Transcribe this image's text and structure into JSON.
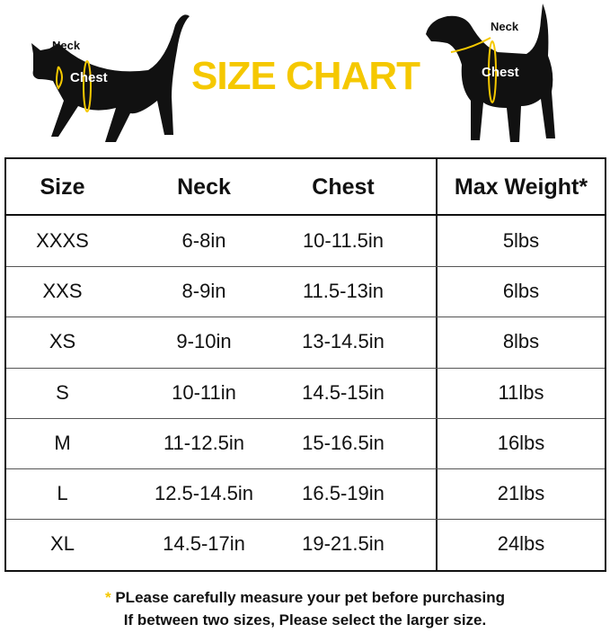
{
  "header": {
    "title": "SIZE CHART",
    "cat_labels": {
      "neck": "Neck",
      "chest": "Chest"
    },
    "dog_labels": {
      "neck": "Neck",
      "chest": "Chest"
    }
  },
  "colors": {
    "accent": "#f5c800",
    "text": "#111111"
  },
  "table": {
    "columns": [
      "Size",
      "Neck",
      "Chest",
      "Max Weight*"
    ],
    "rows": [
      {
        "size": "XXXS",
        "neck": "6-8in",
        "chest": "10-11.5in",
        "weight": "5lbs"
      },
      {
        "size": "XXS",
        "neck": "8-9in",
        "chest": "11.5-13in",
        "weight": "6lbs"
      },
      {
        "size": "XS",
        "neck": "9-10in",
        "chest": "13-14.5in",
        "weight": "8lbs"
      },
      {
        "size": "S",
        "neck": "10-11in",
        "chest": "14.5-15in",
        "weight": "11lbs"
      },
      {
        "size": "M",
        "neck": "11-12.5in",
        "chest": "15-16.5in",
        "weight": "16lbs"
      },
      {
        "size": "L",
        "neck": "12.5-14.5in",
        "chest": "16.5-19in",
        "weight": "21lbs"
      },
      {
        "size": "XL",
        "neck": "14.5-17in",
        "chest": "19-21.5in",
        "weight": "24lbs"
      }
    ]
  },
  "note": {
    "star": "*",
    "line1": "PLease carefully measure your pet before purchasing",
    "line2": "If between two sizes, Please select the larger size."
  }
}
